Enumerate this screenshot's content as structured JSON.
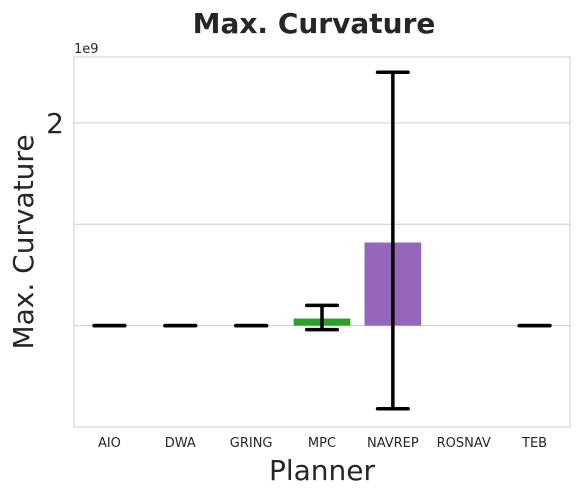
{
  "chart_data": {
    "type": "bar",
    "title": "Max. Curvature",
    "xlabel": "Planner",
    "ylabel": "Max. Curvature",
    "y_offset_label": "1e9",
    "categories": [
      "AIO",
      "DWA",
      "GRING",
      "MPC",
      "NAVREP",
      "ROSNAV",
      "TEB"
    ],
    "values": [
      0.0,
      0.0,
      0.0,
      0.07,
      0.82,
      0.0,
      0.0
    ],
    "error_low": [
      0.0,
      0.0,
      0.0,
      -0.04,
      -0.82,
      null,
      0.0
    ],
    "error_high": [
      0.0,
      0.0,
      0.0,
      0.2,
      2.5,
      null,
      0.0
    ],
    "colors": [
      "#1f77b4",
      "#ff7f0e",
      "#2ca02c",
      "#2ca02c",
      "#9467bd",
      "#8c564b",
      "#e377c2"
    ],
    "ylim": [
      -1.0,
      2.65
    ],
    "yticks": [
      2
    ],
    "grid_lines": [
      0,
      1,
      2
    ],
    "grid": true
  }
}
